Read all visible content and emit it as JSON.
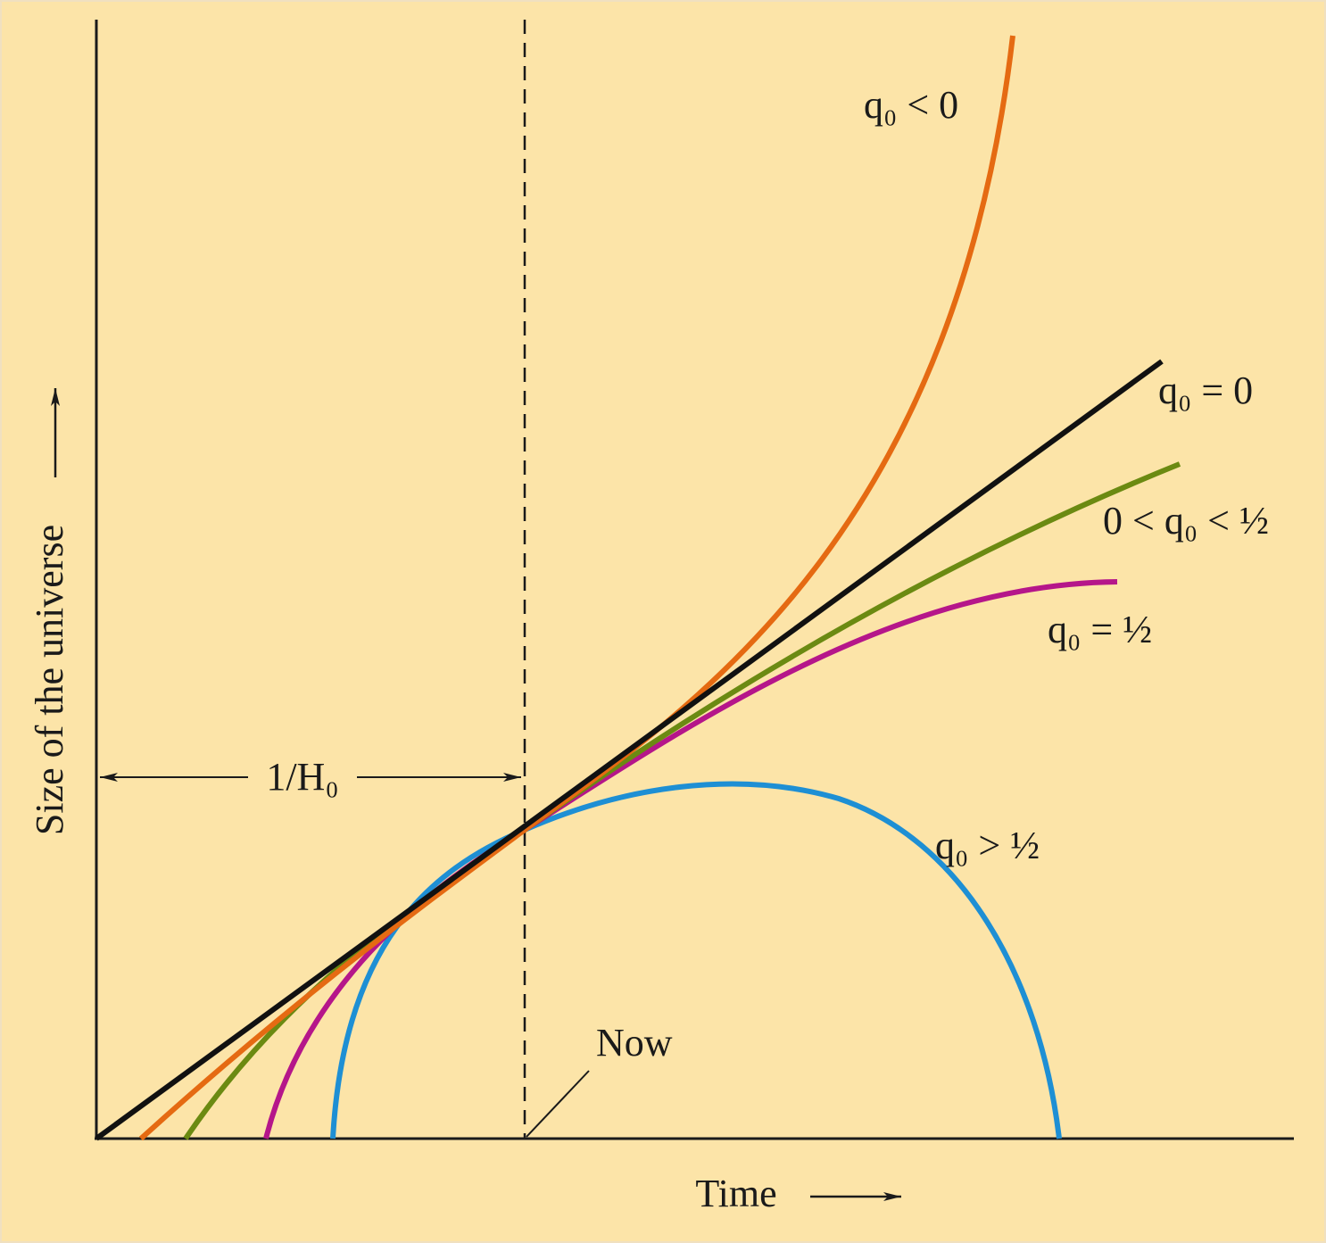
{
  "axes": {
    "y_label": "Size of the universe",
    "x_label": "Time"
  },
  "hubble_time_label": "1/H₀",
  "now_label": "Now",
  "curves": [
    {
      "label": "q₀ < 0"
    },
    {
      "label": "q₀ = 0"
    },
    {
      "label": "0 < q₀ < ½"
    },
    {
      "label": "q₀ = ½"
    },
    {
      "label": "q₀ > ½"
    }
  ]
}
